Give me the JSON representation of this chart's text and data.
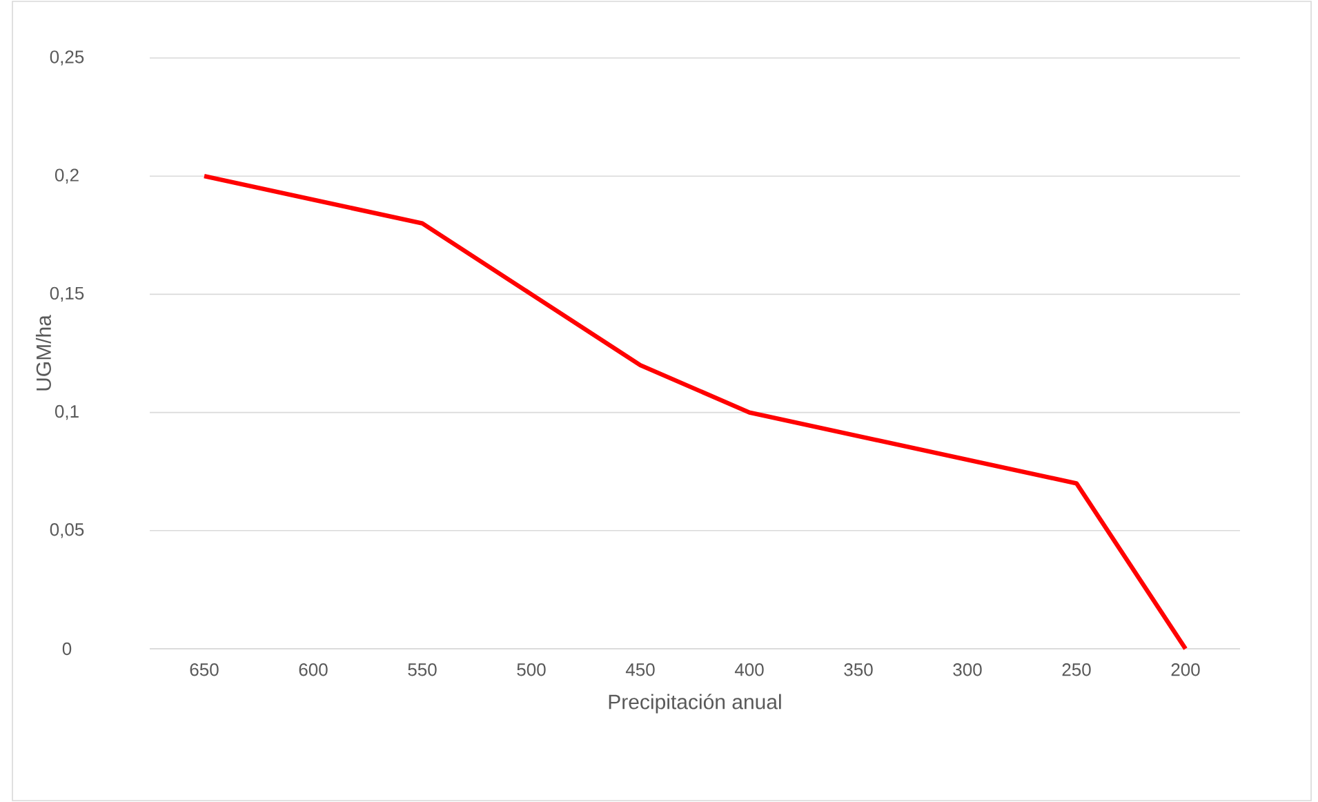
{
  "chart_data": {
    "type": "line",
    "xlabel": "Precipitación anual",
    "ylabel": "UGM/ha",
    "categories": [
      "650",
      "600",
      "550",
      "500",
      "450",
      "400",
      "350",
      "300",
      "250",
      "200"
    ],
    "series": [
      {
        "color": "#ff0000",
        "values": [
          0.2,
          0.19,
          0.18,
          0.15,
          0.12,
          0.1,
          0.09,
          0.08,
          0.07,
          0
        ]
      }
    ],
    "ylim": [
      0,
      0.25
    ],
    "yticks": [
      {
        "value": 0,
        "label": "0"
      },
      {
        "value": 0.05,
        "label": "0,05"
      },
      {
        "value": 0.1,
        "label": "0,1"
      },
      {
        "value": 0.15,
        "label": "0,15"
      },
      {
        "value": 0.2,
        "label": "0,2"
      },
      {
        "value": 0.25,
        "label": "0,25"
      }
    ],
    "grid": "y",
    "marker": "none",
    "line_style": "solid"
  }
}
